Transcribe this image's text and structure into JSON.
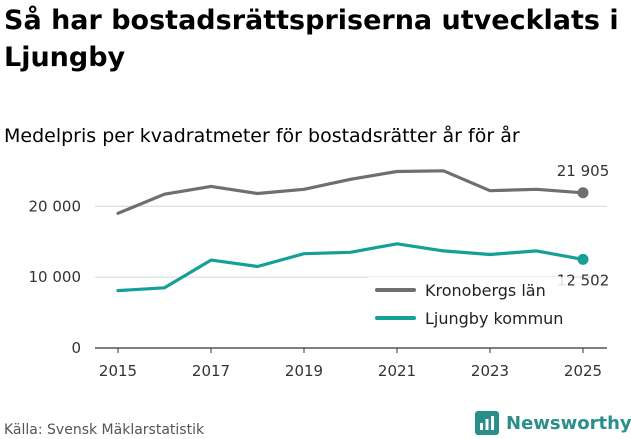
{
  "title": "Så har bostadsrättspriserna utvecklats i Ljungby",
  "subtitle": "Medelpris per kvadratmeter för bostadsrätter år för år",
  "source": "Källa: Svensk Mäklarstatistik",
  "brand": "Newsworthy",
  "colors": {
    "kronoberg": "#6e6e73",
    "ljungby": "#149f97",
    "grid": "#d6d6d6",
    "brand": "#2a8f8a"
  },
  "chart_data": {
    "type": "line",
    "title": "Så har bostadsrättspriserna utvecklats i Ljungby",
    "subtitle": "Medelpris per kvadratmeter för bostadsrätter år för år",
    "xlabel": "",
    "ylabel": "",
    "x": [
      2015,
      2016,
      2017,
      2018,
      2019,
      2020,
      2021,
      2022,
      2023,
      2024,
      2025
    ],
    "x_ticks": [
      "2015",
      "2017",
      "2019",
      "2021",
      "2023",
      "2025"
    ],
    "y_ticks": [
      "0",
      "10 000",
      "20 000"
    ],
    "ylim": [
      0,
      23000
    ],
    "grid": true,
    "legend_position": "bottom-right",
    "series": [
      {
        "name": "Kronobergs län",
        "color": "#6e6e73",
        "values": [
          19000,
          21700,
          22800,
          21800,
          22400,
          23800,
          24900,
          25000,
          22200,
          22400,
          21905
        ],
        "end_label": "21 905"
      },
      {
        "name": "Ljungby kommun",
        "color": "#149f97",
        "values": [
          8100,
          8500,
          12400,
          11500,
          13300,
          13500,
          14700,
          13700,
          13200,
          13700,
          12502
        ],
        "end_label": "12 502"
      }
    ]
  }
}
